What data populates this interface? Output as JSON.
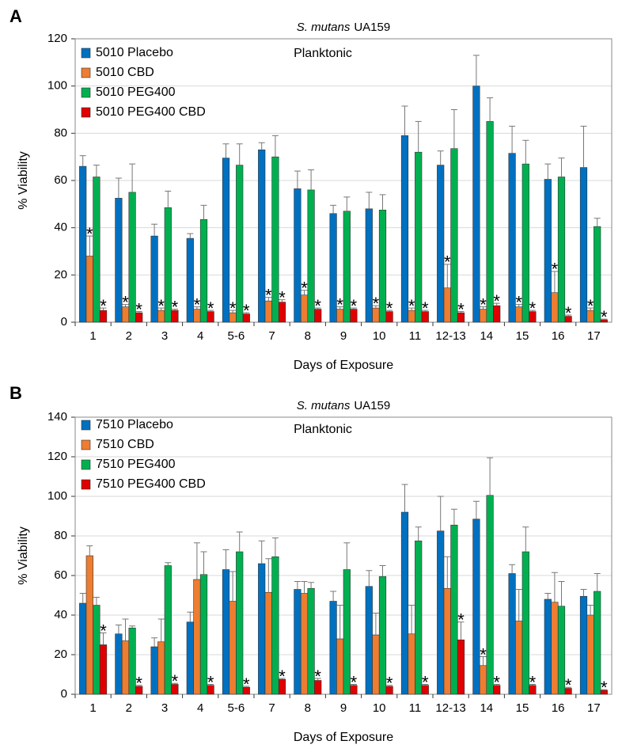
{
  "chart_data": [
    {
      "type": "bar",
      "panel_label": "A",
      "title_species": "S. mutans",
      "title_strain": "UA159",
      "subtitle": "Planktonic",
      "x_label": "Days of Exposure",
      "y_label": "% Viability",
      "categories": [
        "1",
        "2",
        "3",
        "4",
        "5-6",
        "7",
        "8",
        "9",
        "10",
        "11",
        "12-13",
        "14",
        "15",
        "16",
        "17"
      ],
      "ylim": [
        0,
        120
      ],
      "yticks": [
        0,
        20,
        40,
        60,
        80,
        100,
        120
      ],
      "grid": true,
      "legend": "top-left",
      "significance_marker": "*",
      "series": [
        {
          "name": "5010 Placebo",
          "color": "#0070c0",
          "values": [
            66,
            52.5,
            36.5,
            35.5,
            69.5,
            73,
            56.5,
            46,
            48,
            79,
            66.5,
            100,
            71.5,
            60.5,
            65.5
          ],
          "errors": [
            4.5,
            8.5,
            5,
            2,
            6,
            3,
            7.5,
            3.5,
            7,
            12.5,
            6,
            13,
            11.5,
            6.5,
            17.5
          ],
          "significant": [
            false,
            false,
            false,
            false,
            false,
            false,
            false,
            false,
            false,
            false,
            false,
            false,
            false,
            false,
            false
          ]
        },
        {
          "name": "5010 CBD",
          "color": "#ed7d31",
          "values": [
            28,
            6.5,
            5,
            5.5,
            4,
            9,
            11.5,
            5.5,
            6,
            5,
            14.5,
            5.5,
            6.5,
            12.5,
            5
          ],
          "errors": [
            8.5,
            1,
            1,
            1,
            1,
            1.5,
            2,
            1,
            1,
            1,
            10,
            1,
            1,
            9,
            1
          ],
          "significant": [
            true,
            true,
            true,
            true,
            true,
            true,
            true,
            true,
            true,
            true,
            true,
            true,
            true,
            true,
            true
          ]
        },
        {
          "name": "5010 PEG400",
          "color": "#00b050",
          "values": [
            61.5,
            55,
            48.5,
            43.5,
            66.5,
            70,
            56,
            47,
            47.5,
            72,
            73.5,
            85,
            67,
            61.5,
            40.5
          ],
          "errors": [
            5,
            12,
            7,
            6,
            9,
            9,
            8.5,
            6,
            6.5,
            13,
            16.5,
            10,
            10,
            8,
            3.5
          ],
          "significant": [
            false,
            false,
            false,
            false,
            false,
            false,
            false,
            false,
            false,
            false,
            false,
            false,
            false,
            false,
            false
          ]
        },
        {
          "name": "5010 PEG400 CBD",
          "color": "#e00000",
          "values": [
            5,
            4,
            5,
            4.5,
            3.5,
            8.5,
            5.5,
            5.5,
            4.5,
            4.5,
            4,
            7,
            4.5,
            2.5,
            1
          ],
          "errors": [
            1,
            0.5,
            0.5,
            0.5,
            0.5,
            1,
            0.5,
            0.5,
            0.5,
            0.5,
            0.5,
            1,
            0.5,
            0.5,
            0.3
          ],
          "significant": [
            true,
            true,
            true,
            true,
            true,
            true,
            true,
            true,
            true,
            true,
            true,
            true,
            true,
            true,
            true
          ]
        }
      ]
    },
    {
      "type": "bar",
      "panel_label": "B",
      "title_species": "S. mutans",
      "title_strain": "UA159",
      "subtitle": "Planktonic",
      "x_label": "Days of Exposure",
      "y_label": "% Viability",
      "categories": [
        "1",
        "2",
        "3",
        "4",
        "5-6",
        "7",
        "8",
        "9",
        "10",
        "11",
        "12-13",
        "14",
        "15",
        "16",
        "17"
      ],
      "ylim": [
        0,
        140
      ],
      "yticks": [
        0,
        20,
        40,
        60,
        80,
        100,
        120,
        140
      ],
      "grid": true,
      "legend": "top-left",
      "significance_marker": "*",
      "series": [
        {
          "name": "7510 Placebo",
          "color": "#0070c0",
          "values": [
            46,
            30.5,
            24,
            36.5,
            63,
            66,
            53,
            47,
            54.5,
            92,
            82.5,
            88.5,
            61,
            48,
            49.5
          ],
          "errors": [
            5,
            4.5,
            4.5,
            5,
            10,
            11.5,
            4,
            5,
            8,
            14,
            17.5,
            9,
            4.5,
            3,
            3.5
          ],
          "significant": [
            false,
            false,
            false,
            false,
            false,
            false,
            false,
            false,
            false,
            false,
            false,
            false,
            false,
            false,
            false
          ]
        },
        {
          "name": "7510 CBD",
          "color": "#ed7d31",
          "values": [
            70,
            27,
            26.5,
            58,
            47,
            51.5,
            51,
            28,
            30,
            30.5,
            53.5,
            14.5,
            37,
            46.5,
            40
          ],
          "errors": [
            5,
            11,
            11.5,
            18.5,
            15,
            17,
            6,
            17,
            11,
            14.5,
            16,
            4.5,
            16,
            15,
            5
          ],
          "significant": [
            false,
            false,
            false,
            false,
            false,
            false,
            false,
            false,
            false,
            false,
            false,
            true,
            false,
            false,
            false
          ]
        },
        {
          "name": "7510 PEG400",
          "color": "#00b050",
          "values": [
            45,
            33.5,
            65,
            60.5,
            72,
            69.5,
            53.5,
            63,
            59.5,
            77.5,
            85.5,
            100.5,
            72,
            44.5,
            52
          ],
          "errors": [
            4,
            1,
            1.5,
            11.5,
            10,
            9.5,
            3,
            13.5,
            5.5,
            7,
            8,
            19,
            12.5,
            12.5,
            9
          ],
          "significant": [
            false,
            false,
            false,
            false,
            false,
            false,
            false,
            false,
            false,
            false,
            false,
            false,
            false,
            false,
            false
          ]
        },
        {
          "name": "7510 PEG400 CBD",
          "color": "#e00000",
          "values": [
            25,
            4,
            5,
            4.5,
            3.5,
            7.5,
            7,
            4.5,
            4,
            4.5,
            27.5,
            4.5,
            4.5,
            3,
            2
          ],
          "errors": [
            6,
            0.5,
            0.5,
            0.5,
            0.5,
            0.5,
            1,
            0.5,
            0.5,
            0.5,
            9,
            0.5,
            0.5,
            0.5,
            0.3
          ],
          "significant": [
            true,
            true,
            true,
            true,
            true,
            true,
            true,
            true,
            true,
            true,
            true,
            true,
            true,
            true,
            true
          ]
        }
      ]
    }
  ]
}
